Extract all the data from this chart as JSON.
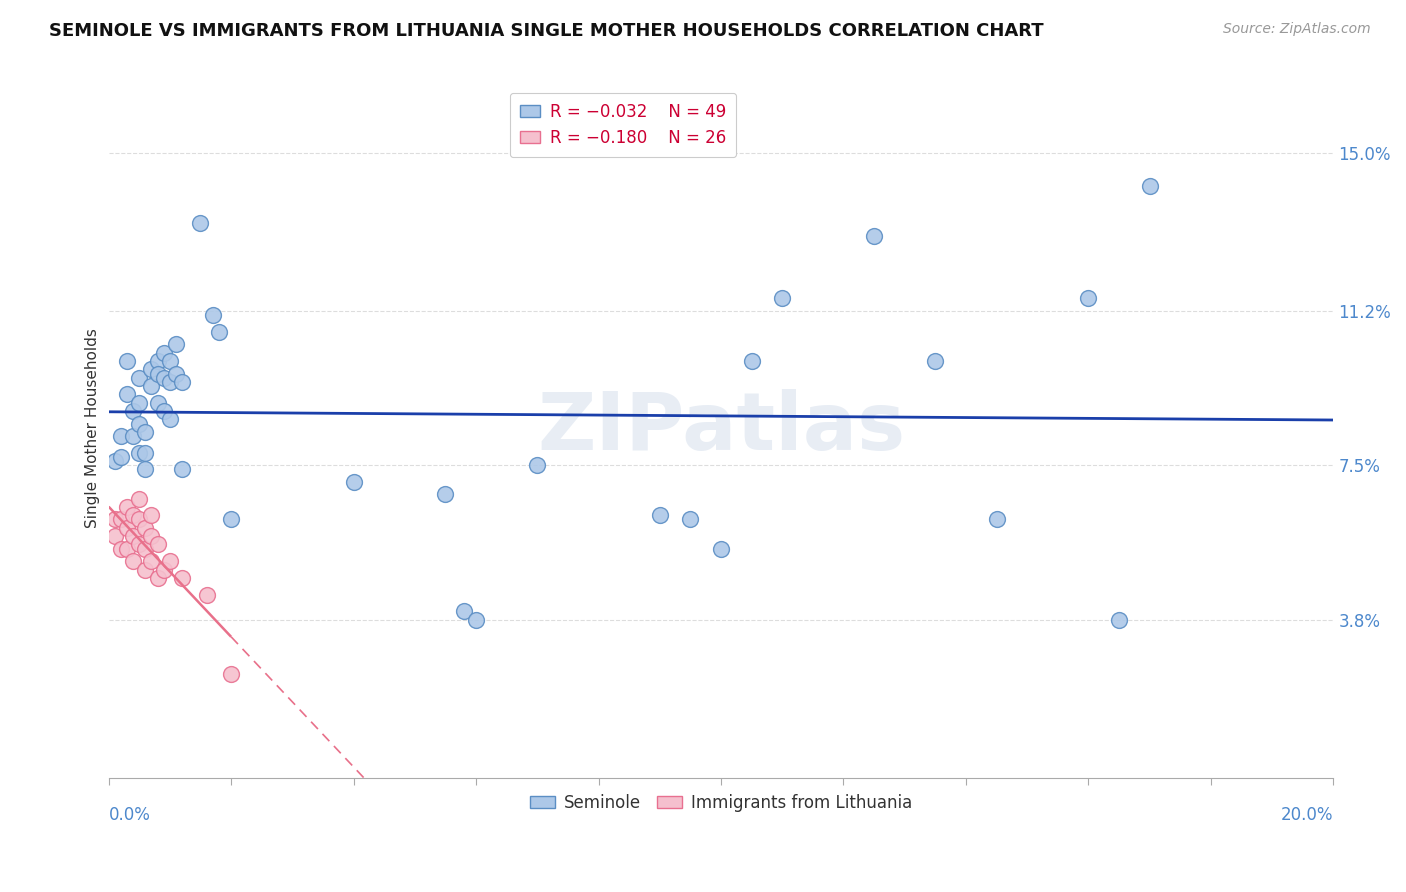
{
  "title": "SEMINOLE VS IMMIGRANTS FROM LITHUANIA SINGLE MOTHER HOUSEHOLDS CORRELATION CHART",
  "source": "Source: ZipAtlas.com",
  "ylabel": "Single Mother Households",
  "ytick_labels": [
    "3.8%",
    "7.5%",
    "11.2%",
    "15.0%"
  ],
  "ytick_values": [
    0.038,
    0.075,
    0.112,
    0.15
  ],
  "xmin": 0.0,
  "xmax": 0.2,
  "ymin": 0.0,
  "ymax": 0.168,
  "seminole_color": "#adc8e8",
  "seminole_edge_color": "#5b8ec4",
  "lithuania_color": "#f5c0ce",
  "lithuania_edge_color": "#e87090",
  "trend_blue": "#1a3faa",
  "trend_pink": "#e8708a",
  "seminole_x": [
    0.001,
    0.002,
    0.002,
    0.003,
    0.003,
    0.004,
    0.004,
    0.005,
    0.005,
    0.005,
    0.005,
    0.006,
    0.006,
    0.006,
    0.007,
    0.007,
    0.008,
    0.008,
    0.008,
    0.009,
    0.009,
    0.009,
    0.01,
    0.01,
    0.01,
    0.011,
    0.011,
    0.012,
    0.012,
    0.015,
    0.017,
    0.018,
    0.02,
    0.04,
    0.055,
    0.058,
    0.06,
    0.07,
    0.09,
    0.095,
    0.1,
    0.105,
    0.11,
    0.125,
    0.135,
    0.145,
    0.16,
    0.165,
    0.17
  ],
  "seminole_y": [
    0.076,
    0.082,
    0.077,
    0.1,
    0.092,
    0.088,
    0.082,
    0.096,
    0.09,
    0.085,
    0.078,
    0.083,
    0.078,
    0.074,
    0.098,
    0.094,
    0.1,
    0.097,
    0.09,
    0.102,
    0.096,
    0.088,
    0.1,
    0.095,
    0.086,
    0.104,
    0.097,
    0.074,
    0.095,
    0.133,
    0.111,
    0.107,
    0.062,
    0.071,
    0.068,
    0.04,
    0.038,
    0.075,
    0.063,
    0.062,
    0.055,
    0.1,
    0.115,
    0.13,
    0.1,
    0.062,
    0.115,
    0.038,
    0.142
  ],
  "lithuania_x": [
    0.001,
    0.001,
    0.002,
    0.002,
    0.003,
    0.003,
    0.003,
    0.004,
    0.004,
    0.004,
    0.005,
    0.005,
    0.005,
    0.006,
    0.006,
    0.006,
    0.007,
    0.007,
    0.007,
    0.008,
    0.008,
    0.009,
    0.01,
    0.012,
    0.016,
    0.02
  ],
  "lithuania_y": [
    0.062,
    0.058,
    0.062,
    0.055,
    0.065,
    0.06,
    0.055,
    0.063,
    0.058,
    0.052,
    0.067,
    0.062,
    0.056,
    0.06,
    0.055,
    0.05,
    0.063,
    0.058,
    0.052,
    0.056,
    0.048,
    0.05,
    0.052,
    0.048,
    0.044,
    0.025
  ],
  "watermark": "ZIPatlas",
  "background_color": "#ffffff",
  "grid_color": "#dddddd"
}
